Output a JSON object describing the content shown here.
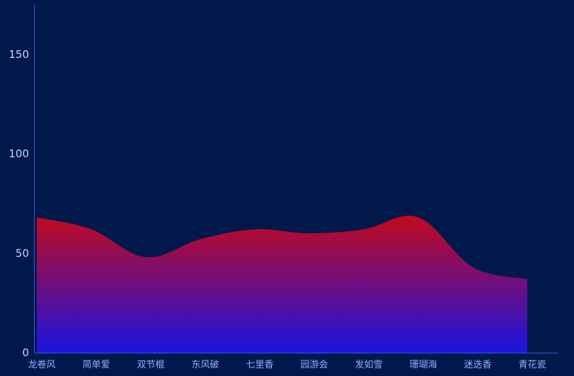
{
  "chart_data": {
    "type": "area",
    "categories": [
      "龙卷风",
      "简单爱",
      "双节棍",
      "东风破",
      "七里香",
      "园游会",
      "发如雪",
      "珊瑚海",
      "迷迭香",
      "青花瓷"
    ],
    "series": [
      {
        "values": [
          68,
          62,
          48,
          57,
          62,
          60,
          62,
          68,
          43,
          37
        ]
      }
    ],
    "ylim": [
      0,
      175
    ],
    "yticks": [
      0,
      50,
      100,
      150
    ],
    "grid": false,
    "title": "",
    "xlabel": "",
    "ylabel": "",
    "colors": {
      "background": "#00194a",
      "axis": "#3a59d6",
      "gradient_top": "#c20a1e",
      "gradient_bottom": "#1a14e0",
      "y_tick_label": "#c9d3ff",
      "x_tick_label": "#8fb0ff"
    }
  }
}
